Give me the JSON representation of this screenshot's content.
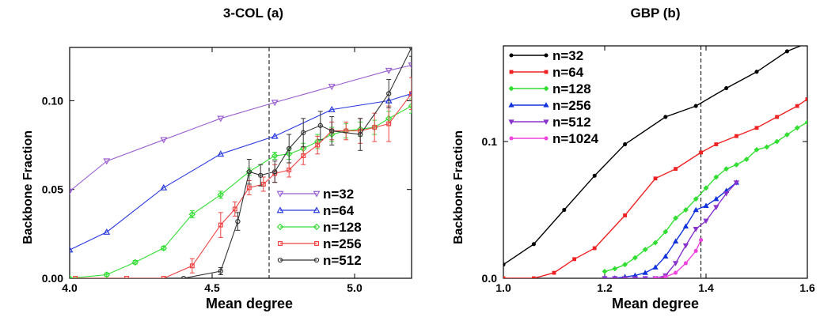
{
  "chart_data": [
    {
      "type": "line",
      "title": "3-COL (a)",
      "xlabel": "Mean degree",
      "ylabel": "Backbone Fraction",
      "xlim": [
        4.0,
        5.2
      ],
      "ylim": [
        0.0,
        0.13
      ],
      "xticks": [
        4.0,
        4.5,
        5.0
      ],
      "xtick_labels": [
        "4.0",
        "4.5",
        "5.0"
      ],
      "yticks": [
        0.0,
        0.05,
        0.1
      ],
      "ytick_labels": [
        "0.00",
        "0.05",
        "0.10"
      ],
      "vline": 4.7,
      "grid": false,
      "legend_position": "bottom-right",
      "series": [
        {
          "name": "n=32",
          "color": "#9a5fd0",
          "marker": "triangle-down",
          "x": [
            4.0,
            4.13,
            4.33,
            4.53,
            4.72,
            4.92,
            5.12,
            5.2
          ],
          "y": [
            0.049,
            0.066,
            0.078,
            0.09,
            0.099,
            0.108,
            0.117,
            0.12
          ],
          "err": []
        },
        {
          "name": "n=64",
          "color": "#2b3be0",
          "marker": "triangle-up",
          "x": [
            4.0,
            4.13,
            4.33,
            4.53,
            4.72,
            4.92,
            5.12,
            5.2
          ],
          "y": [
            0.016,
            0.026,
            0.051,
            0.07,
            0.08,
            0.095,
            0.1,
            0.104
          ],
          "err": []
        },
        {
          "name": "n=128",
          "color": "#33dd33",
          "marker": "diamond",
          "x": [
            4.0,
            4.13,
            4.23,
            4.33,
            4.43,
            4.53,
            4.63,
            4.72,
            4.77,
            4.82,
            4.87,
            4.92,
            4.97,
            5.02,
            5.07,
            5.12,
            5.2
          ],
          "y": [
            0.0,
            0.002,
            0.009,
            0.017,
            0.036,
            0.047,
            0.06,
            0.069,
            0.07,
            0.073,
            0.077,
            0.081,
            0.083,
            0.084,
            0.085,
            0.09,
            0.097
          ],
          "err": [
            0.0,
            0.001,
            0.001,
            0.001,
            0.002,
            0.002,
            0.002,
            0.002,
            0.003,
            0.003,
            0.004,
            0.004,
            0.004,
            0.004,
            0.004,
            0.004,
            0.004
          ]
        },
        {
          "name": "n=256",
          "color": "#ee4444",
          "marker": "square",
          "x": [
            4.02,
            4.2,
            4.33,
            4.43,
            4.53,
            4.58,
            4.63,
            4.68,
            4.72,
            4.77,
            4.82,
            4.87,
            4.92,
            4.97,
            5.02,
            5.07,
            5.12,
            5.2
          ],
          "y": [
            0.0,
            0.0,
            0.0,
            0.007,
            0.03,
            0.039,
            0.051,
            0.053,
            0.059,
            0.061,
            0.069,
            0.075,
            0.083,
            0.083,
            0.083,
            0.085,
            0.087,
            0.104
          ],
          "err": [
            0.0,
            0.0,
            0.0,
            0.004,
            0.007,
            0.004,
            0.004,
            0.004,
            0.005,
            0.004,
            0.005,
            0.005,
            0.005,
            0.005,
            0.007,
            0.008,
            0.01,
            0.009
          ]
        },
        {
          "name": "n=512",
          "color": "#333333",
          "marker": "circle",
          "x": [
            4.4,
            4.53,
            4.59,
            4.63,
            4.67,
            4.72,
            4.77,
            4.82,
            4.88,
            4.92,
            5.02,
            5.12,
            5.2
          ],
          "y": [
            0.0,
            0.004,
            0.032,
            0.06,
            0.058,
            0.06,
            0.073,
            0.082,
            0.086,
            0.083,
            0.081,
            0.104,
            0.13
          ],
          "err": [
            0.0,
            0.002,
            0.005,
            0.007,
            0.006,
            0.006,
            0.008,
            0.008,
            0.008,
            0.008,
            0.009,
            0.008,
            0.005
          ]
        }
      ]
    },
    {
      "type": "line",
      "title": "GBP (b)",
      "xlabel": "Mean degree",
      "ylabel": "Backbone Fraction",
      "xlim": [
        1.0,
        1.6
      ],
      "ylim": [
        0.0,
        0.17
      ],
      "xticks": [
        1.0,
        1.2,
        1.4,
        1.6
      ],
      "xtick_labels": [
        "1.0",
        "1.2",
        "1.4",
        "1.6"
      ],
      "yticks": [
        0.0,
        0.1
      ],
      "ytick_labels": [
        "0.0",
        "0.1"
      ],
      "vline": 1.39,
      "grid": false,
      "legend_position": "top-left",
      "series": [
        {
          "name": "n=32",
          "color": "#000000",
          "marker": "circle",
          "x": [
            1.0,
            1.06,
            1.12,
            1.18,
            1.24,
            1.32,
            1.38,
            1.44,
            1.5,
            1.56,
            1.6
          ],
          "y": [
            0.01,
            0.025,
            0.05,
            0.075,
            0.098,
            0.118,
            0.126,
            0.139,
            0.151,
            0.166,
            0.172
          ],
          "err": []
        },
        {
          "name": "n=64",
          "color": "#ee2222",
          "marker": "square",
          "x": [
            1.0,
            1.06,
            1.1,
            1.14,
            1.18,
            1.24,
            1.3,
            1.34,
            1.39,
            1.42,
            1.46,
            1.5,
            1.54,
            1.58,
            1.6
          ],
          "y": [
            0.0,
            0.0,
            0.004,
            0.014,
            0.022,
            0.046,
            0.073,
            0.08,
            0.092,
            0.098,
            0.104,
            0.11,
            0.118,
            0.126,
            0.131
          ],
          "err": []
        },
        {
          "name": "n=128",
          "color": "#33dd33",
          "marker": "diamond",
          "x": [
            1.2,
            1.22,
            1.24,
            1.26,
            1.28,
            1.3,
            1.32,
            1.34,
            1.36,
            1.38,
            1.4,
            1.42,
            1.44,
            1.46,
            1.48,
            1.5,
            1.52,
            1.54,
            1.56,
            1.58,
            1.6
          ],
          "y": [
            0.005,
            0.007,
            0.01,
            0.015,
            0.021,
            0.026,
            0.034,
            0.044,
            0.05,
            0.058,
            0.066,
            0.074,
            0.08,
            0.083,
            0.087,
            0.094,
            0.096,
            0.1,
            0.105,
            0.11,
            0.114
          ],
          "err": []
        },
        {
          "name": "n=256",
          "color": "#1133dd",
          "marker": "triangle-up",
          "x": [
            1.2,
            1.22,
            1.24,
            1.26,
            1.28,
            1.3,
            1.32,
            1.34,
            1.36,
            1.38,
            1.4,
            1.42,
            1.44,
            1.46
          ],
          "y": [
            0.0,
            0.0,
            0.001,
            0.002,
            0.004,
            0.008,
            0.016,
            0.027,
            0.038,
            0.05,
            0.053,
            0.058,
            0.064,
            0.07
          ],
          "err": []
        },
        {
          "name": "n=512",
          "color": "#8833cc",
          "marker": "triangle-down",
          "x": [
            1.2,
            1.22,
            1.24,
            1.26,
            1.28,
            1.3,
            1.32,
            1.34,
            1.36,
            1.38,
            1.4,
            1.42,
            1.44,
            1.46
          ],
          "y": [
            0.0,
            0.0,
            0.0,
            0.0,
            0.0,
            0.0,
            0.002,
            0.011,
            0.024,
            0.036,
            0.042,
            0.052,
            0.062,
            0.07
          ],
          "err": []
        },
        {
          "name": "n=1024",
          "color": "#ee44dd",
          "marker": "circle",
          "x": [
            1.3,
            1.32,
            1.34,
            1.36,
            1.38,
            1.39
          ],
          "y": [
            0.0,
            0.001,
            0.004,
            0.011,
            0.02,
            0.028
          ],
          "err": []
        }
      ]
    }
  ]
}
